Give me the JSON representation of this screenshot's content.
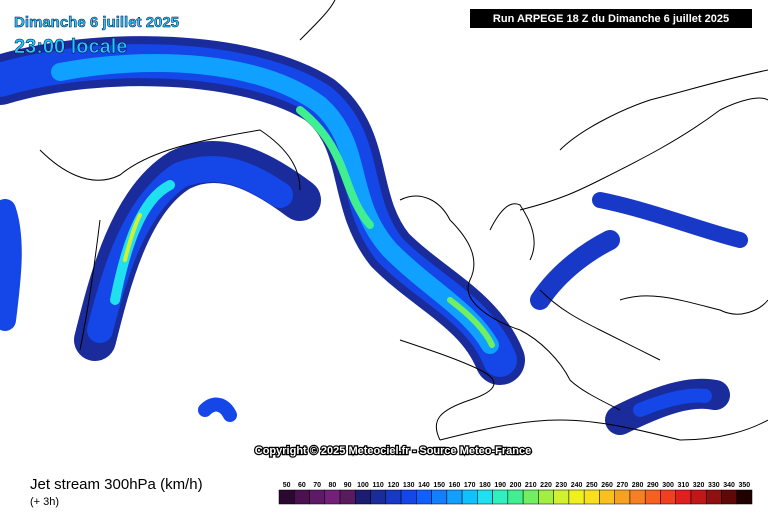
{
  "header": {
    "date": "Dimanche 6 juillet 2025",
    "time": "23:00 locale",
    "run": "Run ARPEGE 18 Z du Dimanche 6 juillet 2025"
  },
  "copyright": "Copyright © 2025 Meteociel.fr - Source Meteo-France",
  "legend": {
    "title": "Jet stream 300hPa (km/h)",
    "lead": "(+ 3h)",
    "scale": [
      50,
      60,
      70,
      80,
      90,
      100,
      110,
      120,
      130,
      140,
      150,
      160,
      170,
      180,
      190,
      200,
      210,
      220,
      230,
      240,
      250,
      260,
      270,
      280,
      290,
      300,
      310,
      320,
      330,
      340,
      350
    ],
    "colors": [
      "#2a0830",
      "#4a1050",
      "#5e1a66",
      "#72207a",
      "#5a1a5e",
      "#1c1c70",
      "#1a2c9c",
      "#1838c8",
      "#1446e8",
      "#1060ff",
      "#1080ff",
      "#10a0ff",
      "#10c0ff",
      "#20e0f0",
      "#30f0c0",
      "#40f090",
      "#70f060",
      "#a0f040",
      "#d0f030",
      "#f0f020",
      "#f8e020",
      "#f8c020",
      "#f8a020",
      "#f88020",
      "#f86020",
      "#f04020",
      "#e02020",
      "#c01818",
      "#901010",
      "#600808",
      "#200000"
    ]
  }
}
